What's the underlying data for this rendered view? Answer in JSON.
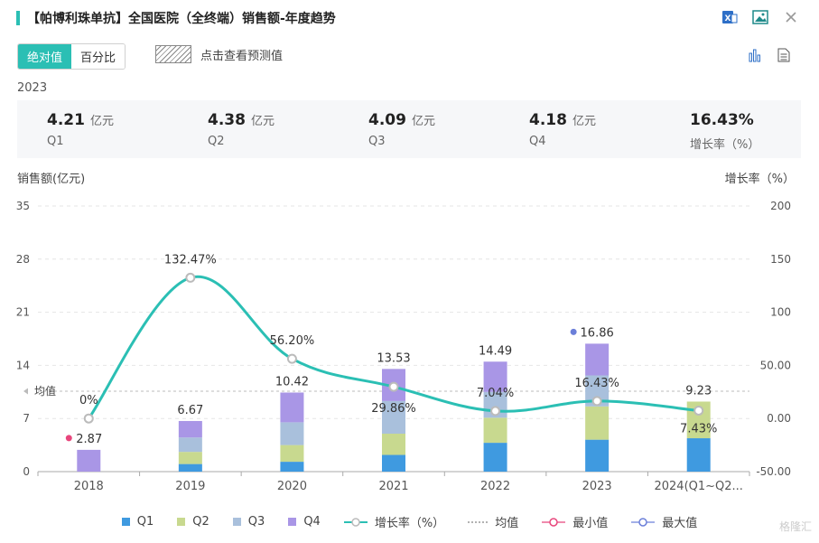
{
  "title": "【帕博利珠单抗】全国医院（全终端）销售额-年度趋势",
  "toggle": {
    "absolute": "绝对值",
    "percent": "百分比"
  },
  "forecast_label": "点击查看预测值",
  "year_label": "2023",
  "summary": [
    {
      "value": "4.21",
      "unit": "亿元",
      "label": "Q1"
    },
    {
      "value": "4.38",
      "unit": "亿元",
      "label": "Q2"
    },
    {
      "value": "4.09",
      "unit": "亿元",
      "label": "Q3"
    },
    {
      "value": "4.18",
      "unit": "亿元",
      "label": "Q4"
    },
    {
      "value": "16.43%",
      "unit": "",
      "label": "增长率（%）"
    }
  ],
  "colors": {
    "accent": "#2bbfb4",
    "q1": "#3f9ae0",
    "q2": "#c8d98f",
    "q3": "#a9c0dc",
    "q4": "#a996e6",
    "min": "#e8467c",
    "max": "#6b7fd9"
  },
  "legend": [
    "Q1",
    "Q2",
    "Q3",
    "Q4",
    "增长率（%）",
    "均值",
    "最小值",
    "最大值"
  ],
  "watermark": "格隆汇",
  "chart_data": {
    "type": "bar",
    "stacked": true,
    "categories": [
      "2018",
      "2019",
      "2020",
      "2021",
      "2022",
      "2023",
      "2024(Q1~Q2..."
    ],
    "ylabel": "销售额(亿元)",
    "y2label": "增长率（%）",
    "ylim": [
      0,
      35
    ],
    "y2lim": [
      -50,
      200
    ],
    "yticks": [
      "0",
      "7",
      "14",
      "21",
      "28",
      "35"
    ],
    "y2ticks": [
      "-50.00",
      "0.00",
      "50.00",
      "100",
      "150",
      "200"
    ],
    "series": [
      {
        "name": "Q1",
        "values": [
          0,
          1.0,
          1.3,
          2.2,
          3.8,
          4.21,
          4.4
        ]
      },
      {
        "name": "Q2",
        "values": [
          0,
          1.6,
          2.2,
          2.8,
          3.3,
          4.38,
          4.83
        ]
      },
      {
        "name": "Q3",
        "values": [
          0,
          1.9,
          3.0,
          4.3,
          3.4,
          4.09,
          0
        ]
      },
      {
        "name": "Q4",
        "values": [
          2.87,
          2.17,
          3.92,
          4.23,
          3.99,
          4.18,
          0
        ]
      }
    ],
    "totals": [
      "2.87",
      "6.67",
      "10.42",
      "13.53",
      "14.49",
      "16.86",
      "9.23"
    ],
    "growth": {
      "name": "增长率（%）",
      "values": [
        0,
        132.47,
        56.2,
        29.86,
        7.04,
        16.43,
        7.43
      ],
      "labels": [
        "0%",
        "132.47%",
        "56.20%",
        "29.86%",
        "7.04%",
        "16.43%",
        "7.43%"
      ]
    },
    "mean_label": "均值",
    "mean_value": 10.6,
    "min_index": 0,
    "max_index": 5,
    "legend_position": "bottom"
  }
}
